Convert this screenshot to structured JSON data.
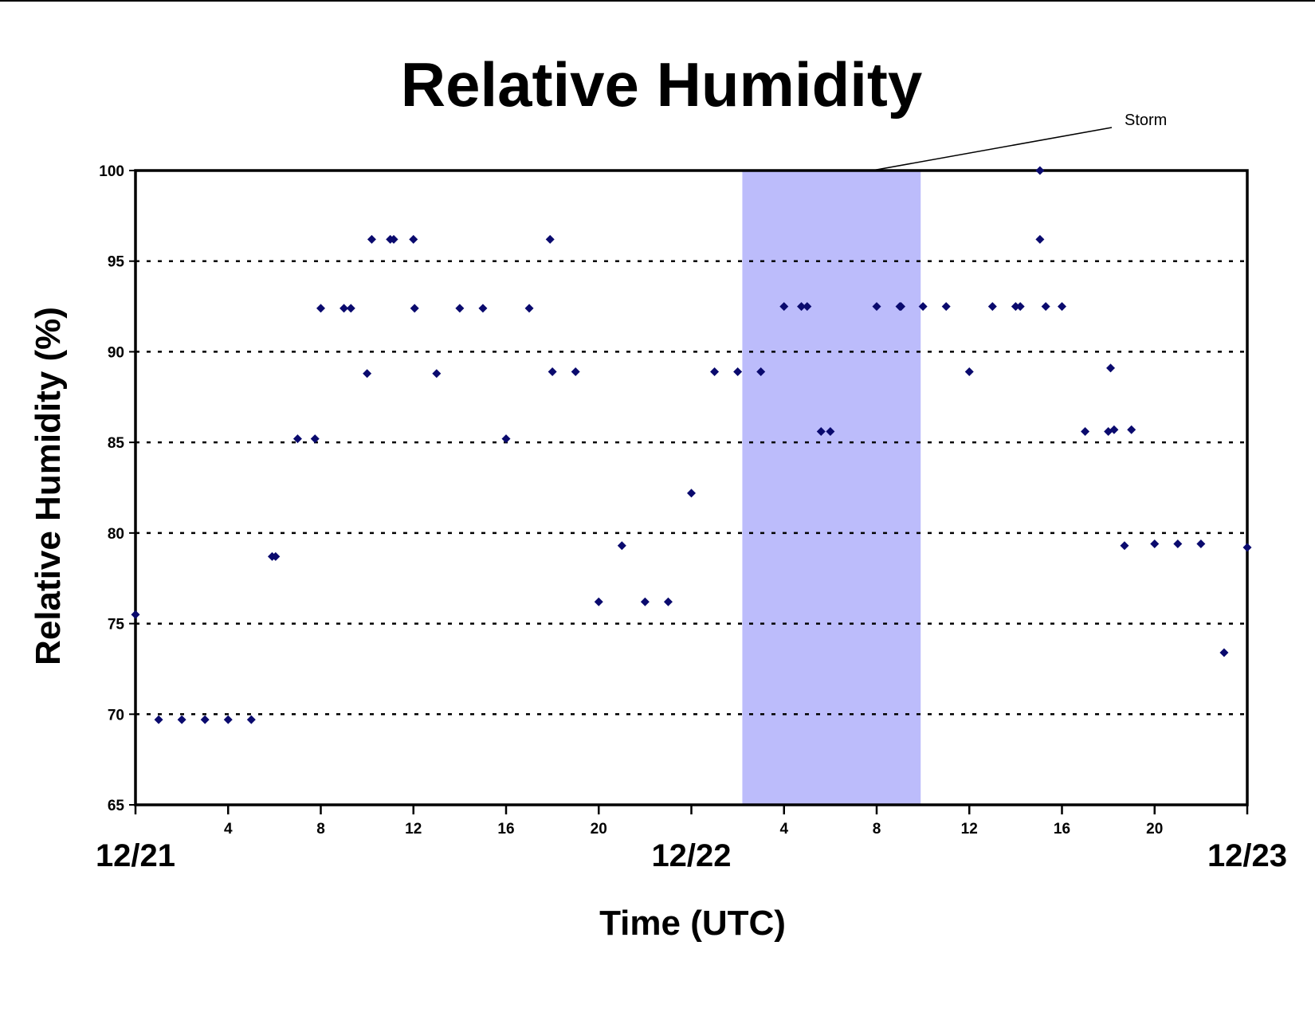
{
  "chart_data": {
    "type": "scatter",
    "title": "Relative Humidity",
    "xlabel": "Time (UTC)",
    "ylabel": "Relative Humidity (%)",
    "xlim": [
      "12/21 00:00",
      "12/23 00:00"
    ],
    "ylim": [
      65,
      100
    ],
    "y_ticks": [
      "65",
      "70",
      "75",
      "80",
      "85",
      "90",
      "95",
      "100"
    ],
    "x_ticks": [
      {
        "hour": 4,
        "label": "4"
      },
      {
        "hour": 8,
        "label": "8"
      },
      {
        "hour": 12,
        "label": "12"
      },
      {
        "hour": 16,
        "label": "16"
      },
      {
        "hour": 20,
        "label": "20"
      },
      {
        "hour": 28,
        "label": "4"
      },
      {
        "hour": 32,
        "label": "8"
      },
      {
        "hour": 36,
        "label": "12"
      },
      {
        "hour": 40,
        "label": "16"
      },
      {
        "hour": 44,
        "label": "20"
      }
    ],
    "date_labels": [
      {
        "hour": 0,
        "label": "12/21"
      },
      {
        "hour": 24,
        "label": "12/22"
      },
      {
        "hour": 48,
        "label": "12/23"
      }
    ],
    "grid": "horizontal dotted",
    "marker_color": "#0a0a6e",
    "shade_color": "#bcbcfb",
    "annotation": {
      "text": "Storm",
      "start_hour": 26.2,
      "end_hour": 33.9
    },
    "points": [
      [
        0,
        75.5
      ],
      [
        1,
        69.7
      ],
      [
        2,
        69.7
      ],
      [
        3,
        69.7
      ],
      [
        4,
        69.7
      ],
      [
        5,
        69.7
      ],
      [
        5.9,
        78.7
      ],
      [
        6.05,
        78.7
      ],
      [
        7,
        85.2
      ],
      [
        7.75,
        85.2
      ],
      [
        8,
        92.4
      ],
      [
        9,
        92.4
      ],
      [
        9.3,
        92.4
      ],
      [
        10,
        88.8
      ],
      [
        10.2,
        96.2
      ],
      [
        11,
        96.2
      ],
      [
        11.15,
        96.2
      ],
      [
        12,
        96.2
      ],
      [
        12.05,
        92.4
      ],
      [
        13,
        88.8
      ],
      [
        14,
        92.4
      ],
      [
        15,
        92.4
      ],
      [
        16,
        85.2
      ],
      [
        17,
        92.4
      ],
      [
        17.9,
        96.2
      ],
      [
        18,
        88.9
      ],
      [
        19,
        88.9
      ],
      [
        20,
        76.2
      ],
      [
        21,
        79.3
      ],
      [
        22,
        76.2
      ],
      [
        23,
        76.2
      ],
      [
        24,
        82.2
      ],
      [
        25,
        88.9
      ],
      [
        26,
        88.9
      ],
      [
        27,
        88.9
      ],
      [
        28,
        92.5
      ],
      [
        28.75,
        92.5
      ],
      [
        29,
        92.5
      ],
      [
        29.6,
        85.6
      ],
      [
        30,
        85.6
      ],
      [
        32,
        92.5
      ],
      [
        33,
        92.5
      ],
      [
        33.05,
        92.5
      ],
      [
        34,
        92.5
      ],
      [
        35,
        92.5
      ],
      [
        36,
        88.9
      ],
      [
        37,
        92.5
      ],
      [
        38,
        92.5
      ],
      [
        38.2,
        92.5
      ],
      [
        39.05,
        100
      ],
      [
        39.05,
        96.2
      ],
      [
        39.3,
        92.5
      ],
      [
        40,
        92.5
      ],
      [
        41,
        85.6
      ],
      [
        42,
        85.6
      ],
      [
        42.1,
        89.1
      ],
      [
        42.25,
        85.7
      ],
      [
        42.7,
        79.3
      ],
      [
        43,
        85.7
      ],
      [
        44,
        79.4
      ],
      [
        45,
        79.4
      ],
      [
        46,
        79.4
      ],
      [
        47,
        73.4
      ],
      [
        48,
        79.2
      ]
    ]
  }
}
